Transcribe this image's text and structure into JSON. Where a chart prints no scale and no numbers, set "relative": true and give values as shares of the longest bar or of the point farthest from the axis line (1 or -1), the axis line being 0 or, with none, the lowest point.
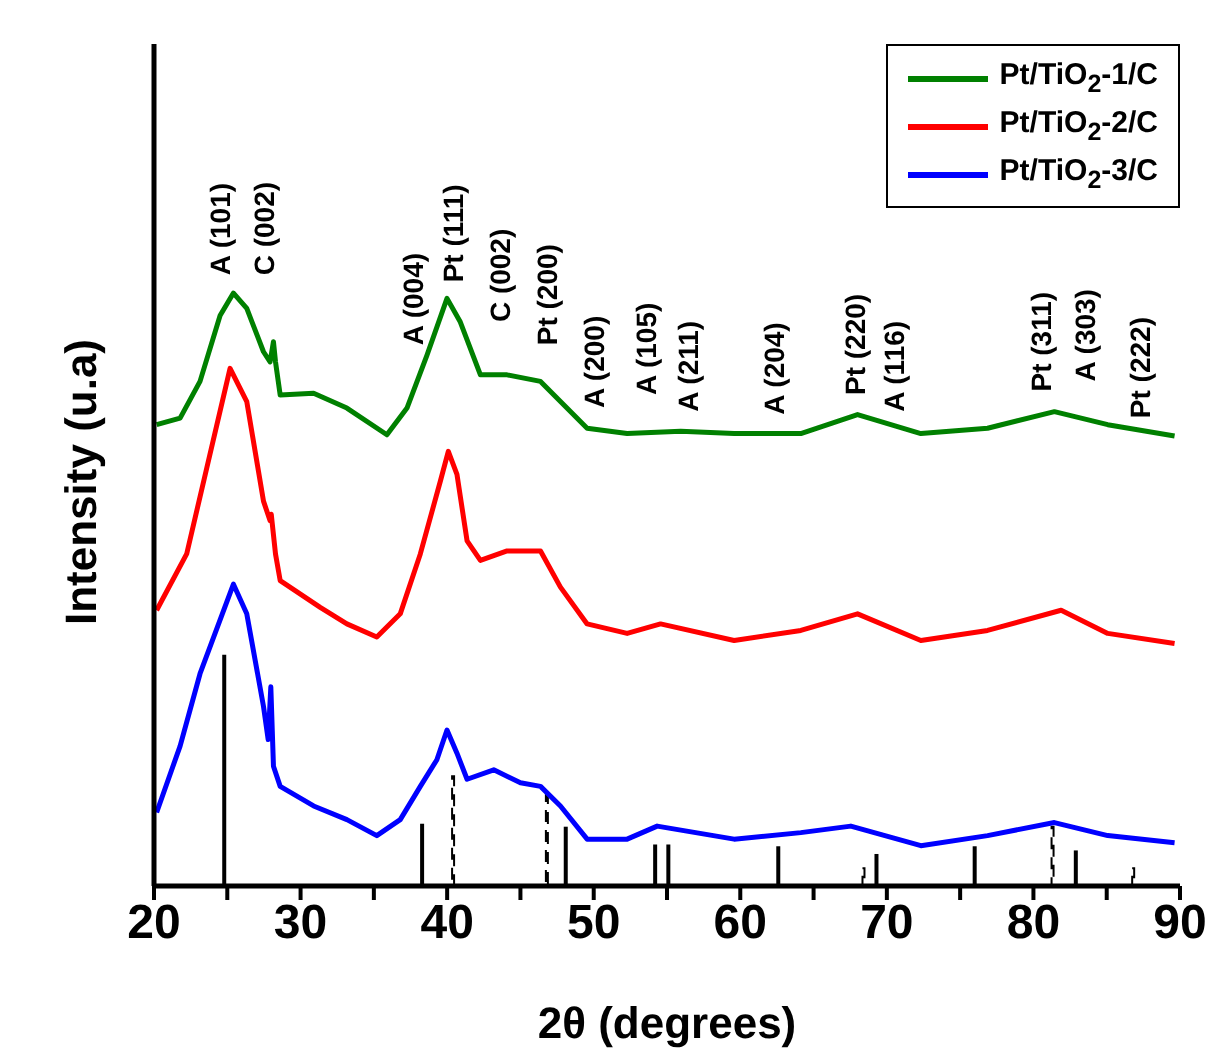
{
  "chart_data": {
    "type": "line",
    "relative": true,
    "xlabel": "2θ  (degrees)",
    "ylabel": "Intensity (u.a)",
    "xlim": [
      20,
      90
    ],
    "xticks": [
      20,
      {
        "value": 25,
        "label": null
      },
      30,
      {
        "value": 35,
        "label": null
      },
      40,
      {
        "value": 45,
        "label": null
      },
      50,
      {
        "value": 55,
        "label": null
      },
      60,
      {
        "value": 65,
        "label": null
      },
      70,
      {
        "value": 75,
        "label": null
      },
      80,
      {
        "value": 85,
        "label": null
      },
      90
    ],
    "tick_labels": "x",
    "legend": "top right",
    "marker": "none",
    "grid": false,
    "series": [
      {
        "name": "Pt/TiO$_{2}$-1/C",
        "color": "#008000",
        "x": [
          20.18,
          21.78,
          23.14,
          24.51,
          25.42,
          26.33,
          27.47,
          27.92,
          28.15,
          28.29,
          28.61,
          30.89,
          33.16,
          35.89,
          37.26,
          38.62,
          39.99,
          40.9,
          42.27,
          44.09,
          46.37,
          47.73,
          49.55,
          52.28,
          55.93,
          59.58,
          64.13,
          68.0,
          72.32,
          76.87,
          81.43,
          85.07,
          89.63
        ],
        "values": [
          0.778,
          0.789,
          0.851,
          0.962,
          1.0,
          0.974,
          0.901,
          0.884,
          0.918,
          0.884,
          0.828,
          0.831,
          0.806,
          0.761,
          0.806,
          0.895,
          0.991,
          0.951,
          0.862,
          0.862,
          0.851,
          0.817,
          0.772,
          0.763,
          0.767,
          0.763,
          0.763,
          0.795,
          0.763,
          0.772,
          0.8,
          0.778,
          0.759
        ]
      },
      {
        "name": "Pt/TiO$_{2}$-2/C",
        "color": "#ff0000",
        "x": [
          20.18,
          22.23,
          23.6,
          25.19,
          26.33,
          27.47,
          27.92,
          28.0,
          28.29,
          28.61,
          31.34,
          33.16,
          35.2,
          36.8,
          38.17,
          39.54,
          40.08,
          40.67,
          41.36,
          42.27,
          44.09,
          46.37,
          47.73,
          49.55,
          52.28,
          54.56,
          59.58,
          64.13,
          68.0,
          72.32,
          76.87,
          81.89,
          85.07,
          89.63
        ],
        "values": [
          0.465,
          0.56,
          0.705,
          0.873,
          0.817,
          0.649,
          0.616,
          0.627,
          0.56,
          0.515,
          0.47,
          0.442,
          0.42,
          0.459,
          0.56,
          0.683,
          0.733,
          0.694,
          0.582,
          0.549,
          0.565,
          0.565,
          0.504,
          0.442,
          0.426,
          0.442,
          0.414,
          0.431,
          0.459,
          0.414,
          0.431,
          0.465,
          0.426,
          0.409
        ]
      },
      {
        "name": "Pt/TiO$_{2}$-3/C",
        "color": "#0000ff",
        "x": [
          20.18,
          21.78,
          23.14,
          25.42,
          26.33,
          27.47,
          27.79,
          27.97,
          28.15,
          28.61,
          30.89,
          33.16,
          35.2,
          36.8,
          38.17,
          39.3,
          39.99,
          40.67,
          41.36,
          43.18,
          45.0,
          46.37,
          47.73,
          49.55,
          52.28,
          54.33,
          59.58,
          64.13,
          67.54,
          72.32,
          76.87,
          81.43,
          85.07,
          89.63
        ],
        "values": [
          0.124,
          0.236,
          0.358,
          0.509,
          0.459,
          0.303,
          0.247,
          0.336,
          0.202,
          0.168,
          0.135,
          0.112,
          0.085,
          0.112,
          0.168,
          0.213,
          0.263,
          0.224,
          0.18,
          0.196,
          0.174,
          0.168,
          0.135,
          0.079,
          0.079,
          0.101,
          0.079,
          0.09,
          0.101,
          0.068,
          0.085,
          0.107,
          0.085,
          0.073
        ]
      },
      {
        "type": "bar",
        "color": "#000000",
        "line_style": "solid",
        "x": [
          24.8,
          38.3,
          48.1,
          54.2,
          55.1,
          62.6,
          69.3,
          76.0,
          82.9
        ],
        "values": [
          0.39,
          0.105,
          0.1,
          0.07,
          0.07,
          0.067,
          0.054,
          0.067,
          0.06
        ]
      },
      {
        "type": "bar",
        "color": "#000000",
        "line_style": "dashed",
        "x": [
          40.4,
          46.8,
          68.4,
          81.3,
          86.8
        ],
        "values": [
          0.185,
          0.155,
          0.03,
          0.1,
          0.03
        ]
      }
    ],
    "annotations": [
      "A (101)",
      "C (002)",
      "A (004)",
      "Pt (111)",
      "C (002)",
      "Pt (200)",
      "A (200)",
      "A (105)",
      "A (211)",
      "A (204)",
      "Pt (220)",
      "A (116)",
      "Pt (311)",
      "A (303)",
      "Pt (222)"
    ]
  }
}
